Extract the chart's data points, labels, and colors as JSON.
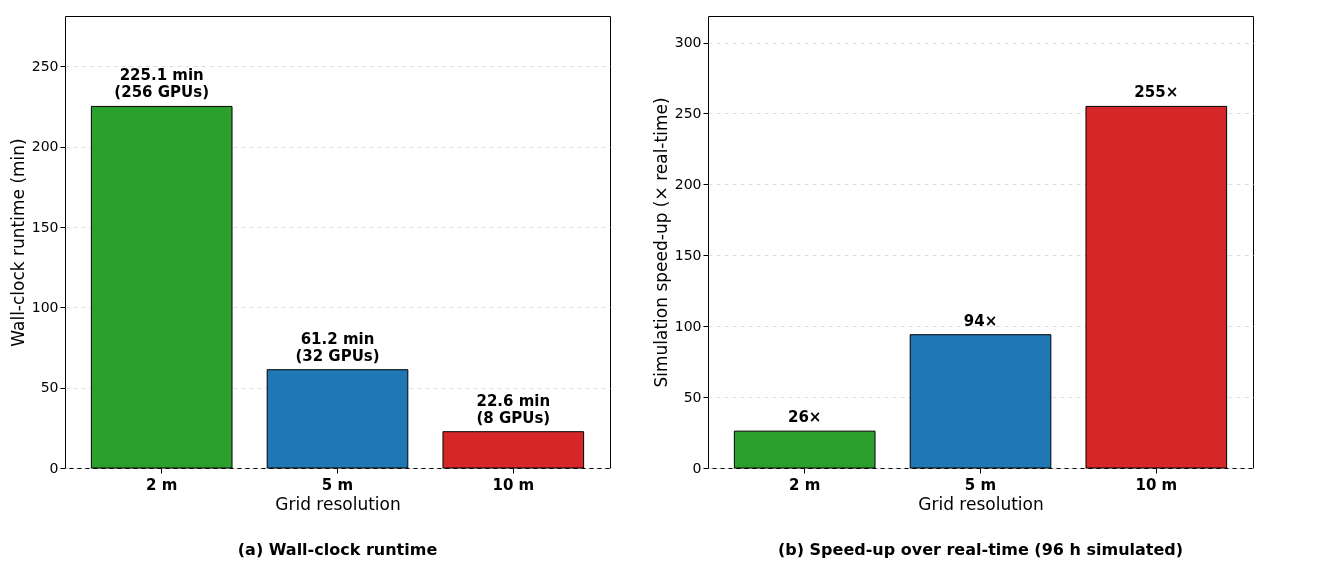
{
  "chart_data": [
    {
      "type": "bar",
      "title": "(a) Wall-clock runtime",
      "xlabel": "Grid resolution",
      "ylabel": "Wall-clock runtime (min)",
      "categories": [
        "2 m",
        "5 m",
        "10 m"
      ],
      "values": [
        225.1,
        61.2,
        22.6
      ],
      "colors": [
        "#2ca02c",
        "#1f77b4",
        "#d62728"
      ],
      "value_labels": [
        "225.1 min\n(256 GPUs)",
        "61.2 min\n(32 GPUs)",
        "22.6 min\n(8 GPUs)"
      ],
      "ylim": [
        0,
        281.4
      ],
      "yticks": [
        0,
        50,
        100,
        150,
        200,
        250
      ],
      "grid": "y"
    },
    {
      "type": "bar",
      "title": "(b) Speed-up over real-time (96 h simulated)",
      "xlabel": "Grid resolution",
      "ylabel": "Simulation speed-up (× real-time)",
      "categories": [
        "2 m",
        "5 m",
        "10 m"
      ],
      "values": [
        26,
        94,
        255
      ],
      "colors": [
        "#2ca02c",
        "#1f77b4",
        "#d62728"
      ],
      "value_labels": [
        "26×",
        "94×",
        "255×"
      ],
      "ylim": [
        0,
        318.75
      ],
      "yticks": [
        0,
        50,
        100,
        150,
        200,
        250,
        300
      ],
      "grid": "y"
    }
  ]
}
